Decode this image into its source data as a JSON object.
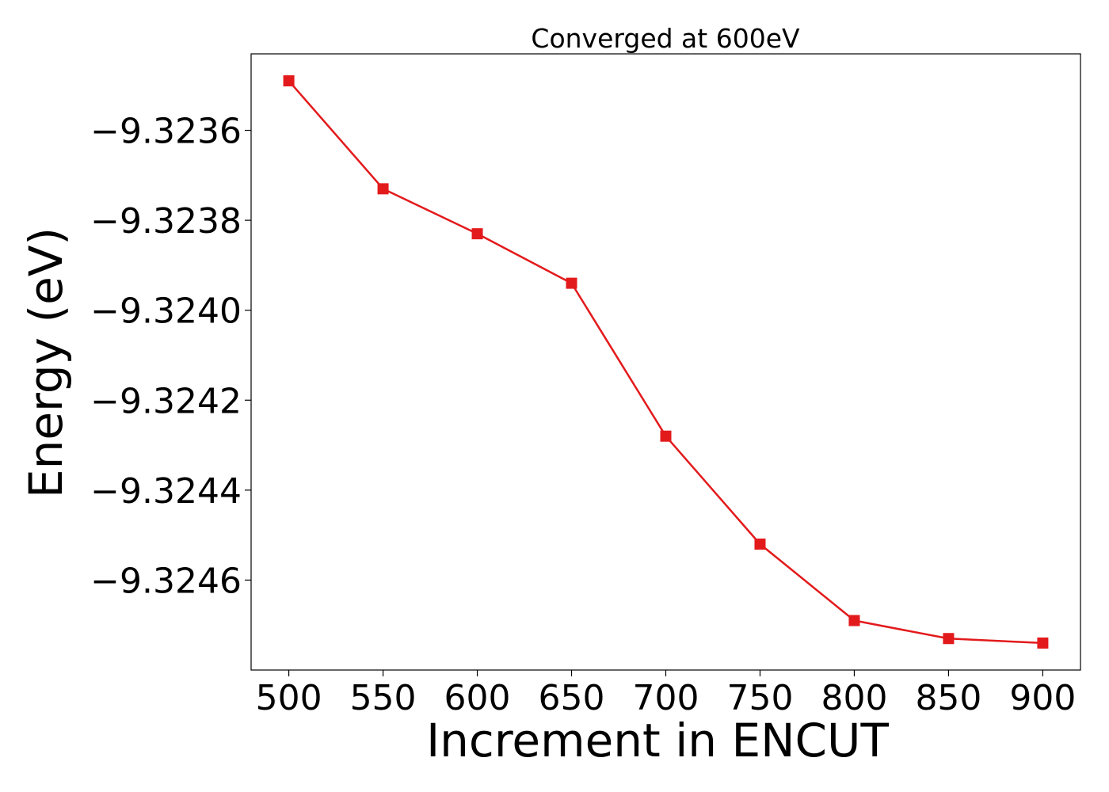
{
  "chart_data": {
    "type": "line",
    "title": "Converged at 600eV",
    "xlabel": "Increment in ENCUT",
    "ylabel": "Energy (eV)",
    "x": [
      500,
      550,
      600,
      650,
      700,
      750,
      800,
      850,
      900
    ],
    "series": [
      {
        "values": [
          -9.32349,
          -9.32373,
          -9.32383,
          -9.32394,
          -9.32428,
          -9.32452,
          -9.32469,
          -9.32473,
          -9.32474
        ],
        "color": "#e31a1c",
        "marker": "square"
      }
    ],
    "xticks": [
      500,
      550,
      600,
      650,
      700,
      750,
      800,
      850,
      900
    ],
    "xtick_labels": [
      "500",
      "550",
      "600",
      "650",
      "700",
      "750",
      "800",
      "850",
      "900"
    ],
    "yticks": [
      -9.3236,
      -9.3238,
      -9.324,
      -9.3242,
      -9.3244,
      -9.3246
    ],
    "ytick_labels": [
      "−9.3236",
      "−9.3238",
      "−9.3240",
      "−9.3242",
      "−9.3244",
      "−9.3246"
    ],
    "xlim": [
      480,
      920
    ],
    "ylim": [
      -9.3248,
      -9.32343
    ],
    "grid": false,
    "legend": "none"
  }
}
